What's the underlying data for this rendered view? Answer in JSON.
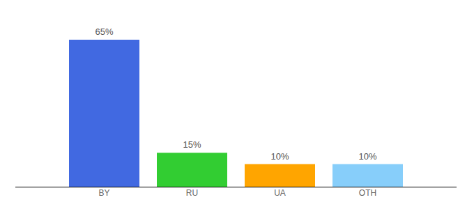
{
  "chart_data": {
    "type": "bar",
    "categories": [
      "BY",
      "RU",
      "UA",
      "OTH"
    ],
    "values": [
      65,
      15,
      10,
      10
    ],
    "value_labels": [
      "65%",
      "15%",
      "10%",
      "10%"
    ],
    "colors": [
      "#4169e1",
      "#32cd32",
      "#ffa500",
      "#87cefa"
    ],
    "ylim": [
      0,
      65
    ],
    "data_labels": true,
    "tick_labels": "x"
  }
}
